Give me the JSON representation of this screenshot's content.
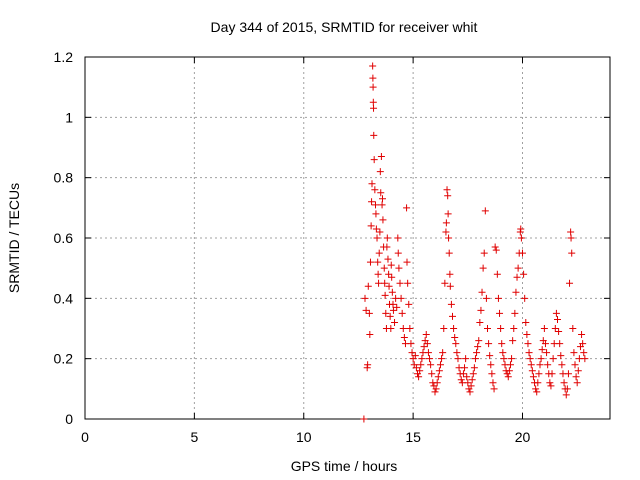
{
  "chart_data": {
    "type": "scatter",
    "title": "Day 344 of 2015, SRMTID for receiver whit",
    "xlabel": "GPS time / hours",
    "ylabel": "SRMTID / TECUs",
    "xlim": [
      0,
      24
    ],
    "ylim": [
      0,
      1.2
    ],
    "xticks": [
      "0",
      "5",
      "10",
      "15",
      "20"
    ],
    "yticks": [
      "0",
      "0.2",
      "0.4",
      "0.6",
      "0.8",
      "1",
      "1.2"
    ],
    "grid": true,
    "marker": "+",
    "series": [
      {
        "name": "SRMTID",
        "color": "#e00000",
        "points": [
          [
            12.75,
            0.0
          ],
          [
            12.8,
            0.4
          ],
          [
            12.85,
            0.36
          ],
          [
            12.9,
            0.17
          ],
          [
            12.92,
            0.18
          ],
          [
            12.95,
            0.44
          ],
          [
            13.0,
            0.35
          ],
          [
            13.02,
            0.28
          ],
          [
            13.05,
            0.52
          ],
          [
            13.08,
            0.64
          ],
          [
            13.1,
            0.72
          ],
          [
            13.12,
            0.78
          ],
          [
            13.15,
            1.17
          ],
          [
            13.16,
            1.13
          ],
          [
            13.17,
            1.1
          ],
          [
            13.18,
            1.05
          ],
          [
            13.19,
            1.03
          ],
          [
            13.2,
            0.94
          ],
          [
            13.22,
            0.86
          ],
          [
            13.25,
            0.76
          ],
          [
            13.28,
            0.71
          ],
          [
            13.3,
            0.68
          ],
          [
            13.32,
            0.63
          ],
          [
            13.35,
            0.6
          ],
          [
            13.38,
            0.52
          ],
          [
            13.4,
            0.48
          ],
          [
            13.42,
            0.45
          ],
          [
            13.45,
            0.55
          ],
          [
            13.48,
            0.62
          ],
          [
            13.5,
            0.82
          ],
          [
            13.52,
            0.75
          ],
          [
            13.55,
            0.87
          ],
          [
            13.58,
            0.71
          ],
          [
            13.6,
            0.73
          ],
          [
            13.62,
            0.66
          ],
          [
            13.65,
            0.57
          ],
          [
            13.68,
            0.5
          ],
          [
            13.7,
            0.45
          ],
          [
            13.72,
            0.41
          ],
          [
            13.75,
            0.35
          ],
          [
            13.78,
            0.3
          ],
          [
            13.8,
            0.57
          ],
          [
            13.82,
            0.6
          ],
          [
            13.85,
            0.53
          ],
          [
            13.88,
            0.48
          ],
          [
            13.9,
            0.44
          ],
          [
            13.92,
            0.38
          ],
          [
            13.95,
            0.34
          ],
          [
            13.98,
            0.3
          ],
          [
            14.0,
            0.51
          ],
          [
            14.02,
            0.47
          ],
          [
            14.05,
            0.42
          ],
          [
            14.08,
            0.38
          ],
          [
            14.1,
            0.36
          ],
          [
            14.15,
            0.32
          ],
          [
            14.2,
            0.4
          ],
          [
            14.25,
            0.37
          ],
          [
            14.3,
            0.6
          ],
          [
            14.32,
            0.55
          ],
          [
            14.35,
            0.5
          ],
          [
            14.4,
            0.45
          ],
          [
            14.45,
            0.4
          ],
          [
            14.5,
            0.35
          ],
          [
            14.55,
            0.3
          ],
          [
            14.6,
            0.27
          ],
          [
            14.65,
            0.25
          ],
          [
            14.7,
            0.7
          ],
          [
            14.72,
            0.52
          ],
          [
            14.75,
            0.45
          ],
          [
            14.8,
            0.38
          ],
          [
            14.85,
            0.3
          ],
          [
            14.9,
            0.25
          ],
          [
            14.95,
            0.22
          ],
          [
            15.0,
            0.2
          ],
          [
            15.05,
            0.18
          ],
          [
            15.1,
            0.21
          ],
          [
            15.15,
            0.17
          ],
          [
            15.2,
            0.15
          ],
          [
            15.25,
            0.14
          ],
          [
            15.3,
            0.16
          ],
          [
            15.35,
            0.18
          ],
          [
            15.4,
            0.2
          ],
          [
            15.45,
            0.22
          ],
          [
            15.5,
            0.24
          ],
          [
            15.55,
            0.26
          ],
          [
            15.6,
            0.28
          ],
          [
            15.65,
            0.25
          ],
          [
            15.7,
            0.22
          ],
          [
            15.75,
            0.2
          ],
          [
            15.8,
            0.18
          ],
          [
            15.85,
            0.15
          ],
          [
            15.9,
            0.12
          ],
          [
            15.95,
            0.11
          ],
          [
            16.0,
            0.09
          ],
          [
            16.05,
            0.1
          ],
          [
            16.1,
            0.12
          ],
          [
            16.15,
            0.14
          ],
          [
            16.2,
            0.16
          ],
          [
            16.25,
            0.18
          ],
          [
            16.3,
            0.2
          ],
          [
            16.35,
            0.22
          ],
          [
            16.4,
            0.3
          ],
          [
            16.45,
            0.45
          ],
          [
            16.5,
            0.62
          ],
          [
            16.52,
            0.65
          ],
          [
            16.55,
            0.76
          ],
          [
            16.58,
            0.74
          ],
          [
            16.6,
            0.68
          ],
          [
            16.62,
            0.6
          ],
          [
            16.65,
            0.55
          ],
          [
            16.68,
            0.48
          ],
          [
            16.7,
            0.44
          ],
          [
            16.75,
            0.38
          ],
          [
            16.8,
            0.34
          ],
          [
            16.85,
            0.3
          ],
          [
            16.9,
            0.27
          ],
          [
            16.95,
            0.25
          ],
          [
            17.0,
            0.22
          ],
          [
            17.05,
            0.2
          ],
          [
            17.1,
            0.17
          ],
          [
            17.15,
            0.15
          ],
          [
            17.2,
            0.13
          ],
          [
            17.25,
            0.12
          ],
          [
            17.3,
            0.15
          ],
          [
            17.35,
            0.17
          ],
          [
            17.4,
            0.2
          ],
          [
            17.45,
            0.14
          ],
          [
            17.5,
            0.12
          ],
          [
            17.55,
            0.1
          ],
          [
            17.6,
            0.09
          ],
          [
            17.65,
            0.11
          ],
          [
            17.7,
            0.13
          ],
          [
            17.75,
            0.15
          ],
          [
            17.8,
            0.17
          ],
          [
            17.85,
            0.2
          ],
          [
            17.9,
            0.22
          ],
          [
            17.95,
            0.24
          ],
          [
            18.0,
            0.26
          ],
          [
            18.05,
            0.32
          ],
          [
            18.1,
            0.36
          ],
          [
            18.15,
            0.42
          ],
          [
            18.2,
            0.5
          ],
          [
            18.25,
            0.55
          ],
          [
            18.3,
            0.69
          ],
          [
            18.35,
            0.4
          ],
          [
            18.4,
            0.3
          ],
          [
            18.45,
            0.25
          ],
          [
            18.5,
            0.21
          ],
          [
            18.55,
            0.18
          ],
          [
            18.6,
            0.15
          ],
          [
            18.65,
            0.12
          ],
          [
            18.7,
            0.1
          ],
          [
            18.75,
            0.57
          ],
          [
            18.8,
            0.56
          ],
          [
            18.85,
            0.48
          ],
          [
            18.9,
            0.4
          ],
          [
            18.95,
            0.35
          ],
          [
            19.0,
            0.3
          ],
          [
            19.05,
            0.25
          ],
          [
            19.1,
            0.22
          ],
          [
            19.15,
            0.2
          ],
          [
            19.2,
            0.18
          ],
          [
            19.25,
            0.16
          ],
          [
            19.3,
            0.15
          ],
          [
            19.35,
            0.14
          ],
          [
            19.4,
            0.16
          ],
          [
            19.45,
            0.18
          ],
          [
            19.5,
            0.2
          ],
          [
            19.55,
            0.26
          ],
          [
            19.6,
            0.3
          ],
          [
            19.65,
            0.35
          ],
          [
            19.7,
            0.42
          ],
          [
            19.75,
            0.47
          ],
          [
            19.8,
            0.5
          ],
          [
            19.85,
            0.55
          ],
          [
            19.9,
            0.62
          ],
          [
            19.92,
            0.63
          ],
          [
            19.95,
            0.6
          ],
          [
            20.0,
            0.55
          ],
          [
            20.05,
            0.48
          ],
          [
            20.1,
            0.4
          ],
          [
            20.15,
            0.32
          ],
          [
            20.2,
            0.28
          ],
          [
            20.25,
            0.25
          ],
          [
            20.3,
            0.22
          ],
          [
            20.35,
            0.2
          ],
          [
            20.4,
            0.18
          ],
          [
            20.45,
            0.16
          ],
          [
            20.5,
            0.14
          ],
          [
            20.55,
            0.12
          ],
          [
            20.6,
            0.1
          ],
          [
            20.65,
            0.09
          ],
          [
            20.7,
            0.12
          ],
          [
            20.75,
            0.15
          ],
          [
            20.8,
            0.18
          ],
          [
            20.85,
            0.2
          ],
          [
            20.9,
            0.23
          ],
          [
            20.95,
            0.26
          ],
          [
            21.0,
            0.3
          ],
          [
            21.05,
            0.25
          ],
          [
            21.1,
            0.22
          ],
          [
            21.15,
            0.18
          ],
          [
            21.2,
            0.15
          ],
          [
            21.25,
            0.12
          ],
          [
            21.3,
            0.11
          ],
          [
            21.35,
            0.15
          ],
          [
            21.4,
            0.2
          ],
          [
            21.45,
            0.25
          ],
          [
            21.5,
            0.3
          ],
          [
            21.55,
            0.35
          ],
          [
            21.6,
            0.33
          ],
          [
            21.65,
            0.29
          ],
          [
            21.7,
            0.25
          ],
          [
            21.75,
            0.21
          ],
          [
            21.8,
            0.18
          ],
          [
            21.85,
            0.15
          ],
          [
            21.9,
            0.12
          ],
          [
            21.95,
            0.1
          ],
          [
            22.0,
            0.08
          ],
          [
            22.05,
            0.1
          ],
          [
            22.1,
            0.15
          ],
          [
            22.15,
            0.45
          ],
          [
            22.2,
            0.62
          ],
          [
            22.22,
            0.6
          ],
          [
            22.25,
            0.55
          ],
          [
            22.3,
            0.3
          ],
          [
            22.35,
            0.22
          ],
          [
            22.4,
            0.18
          ],
          [
            22.45,
            0.14
          ],
          [
            22.5,
            0.12
          ],
          [
            22.55,
            0.16
          ],
          [
            22.6,
            0.2
          ],
          [
            22.65,
            0.24
          ],
          [
            22.7,
            0.28
          ],
          [
            22.75,
            0.25
          ],
          [
            22.8,
            0.22
          ],
          [
            22.85,
            0.2
          ]
        ]
      }
    ]
  }
}
